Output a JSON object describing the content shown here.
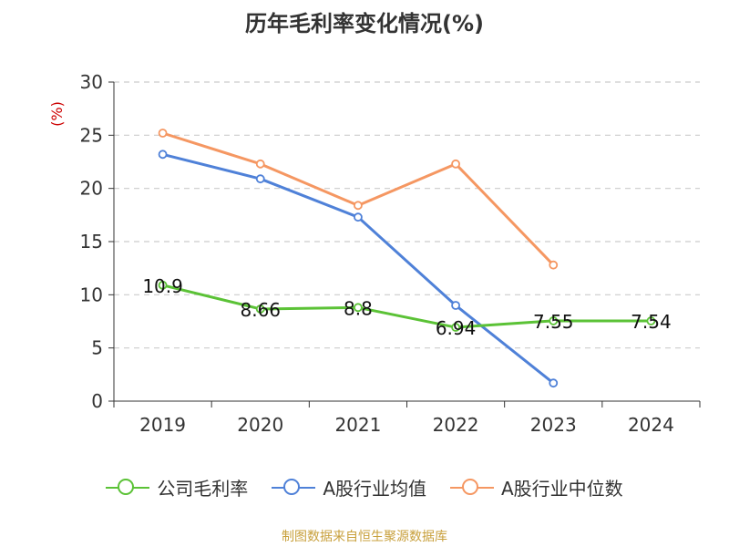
{
  "title": "历年毛利率变化情况(%)",
  "source": "制图数据来自恒生聚源数据库",
  "chart_data": {
    "type": "line",
    "title": "历年毛利率变化情况(%)",
    "xlabel": "",
    "ylabel": "(%)",
    "categories": [
      "2019",
      "2020",
      "2021",
      "2022",
      "2023",
      "2024"
    ],
    "ylim": [
      0,
      30
    ],
    "yticks": [
      0,
      5,
      10,
      15,
      20,
      25,
      30
    ],
    "grid": true,
    "legend_position": "bottom",
    "series": [
      {
        "name": "公司毛利率",
        "color": "#5bc236",
        "values": [
          10.9,
          8.66,
          8.8,
          6.94,
          7.55,
          7.54
        ],
        "labels": [
          "10.9",
          "8.66",
          "8.8",
          "6.94",
          "7.55",
          "7.54"
        ]
      },
      {
        "name": "A股行业均值",
        "color": "#4f81d8",
        "values": [
          23.2,
          20.9,
          17.3,
          9.0,
          1.7,
          null
        ]
      },
      {
        "name": "A股行业中位数",
        "color": "#f59762",
        "values": [
          25.2,
          22.3,
          18.4,
          22.3,
          12.8,
          null
        ]
      }
    ]
  }
}
